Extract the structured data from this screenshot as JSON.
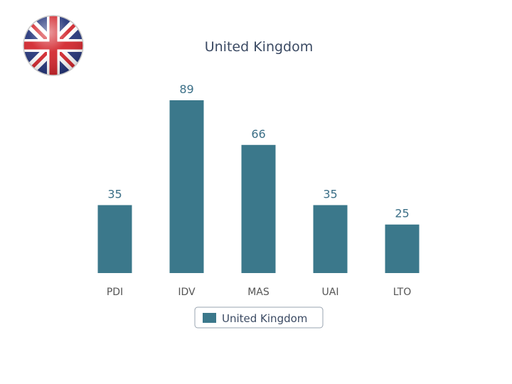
{
  "flag_icon": "uk-flag-icon",
  "colors": {
    "bar": "#3b788b",
    "title": "#3b4a63",
    "data_label": "#3b6f87",
    "legend_border": "#9aa4b0"
  },
  "chart_data": {
    "type": "bar",
    "title": "United Kingdom",
    "xlabel": "",
    "ylabel": "",
    "categories": [
      "PDI",
      "IDV",
      "MAS",
      "UAI",
      "LTO"
    ],
    "series": [
      {
        "name": "United Kingdom",
        "values": [
          35,
          89,
          66,
          35,
          25
        ]
      }
    ],
    "ylim": [
      0,
      89
    ],
    "grid": false,
    "legend_position": "bottom-center",
    "data_labels": true
  }
}
